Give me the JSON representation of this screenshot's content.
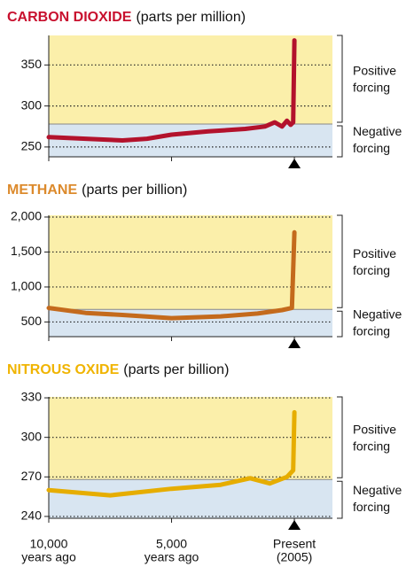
{
  "chart_data": [
    {
      "type": "line",
      "title": "CARBON DIOXIDE",
      "subtitle": "(parts per million)",
      "title_color": "#c8102e",
      "xlim": [
        -10000,
        1550
      ],
      "xticks": [
        -10000,
        -5000,
        0
      ],
      "ylim": [
        238,
        386
      ],
      "yticks": [
        250,
        300,
        350
      ],
      "threshold": 278,
      "annotations": {
        "positive": [
          "Positive",
          "forcing"
        ],
        "negative": [
          "Negative",
          "forcing"
        ]
      },
      "series": [
        {
          "color": "#b3122c",
          "x": [
            -10000,
            -8500,
            -7000,
            -6000,
            -5000,
            -3500,
            -2000,
            -1200,
            -800,
            -500,
            -300,
            -150,
            -50,
            0
          ],
          "values": [
            262,
            260,
            258,
            260,
            265,
            269,
            272,
            275,
            280,
            275,
            282,
            277,
            280,
            380
          ]
        }
      ]
    },
    {
      "type": "line",
      "title": "METHANE",
      "subtitle": "(parts per billion)",
      "title_color": "#dc8a2c",
      "xlim": [
        -10000,
        1550
      ],
      "xticks": [
        -10000,
        -5000,
        0
      ],
      "ylim": [
        290,
        2025
      ],
      "yticks": [
        {
          "value": 2000,
          "label": "2,000"
        },
        {
          "value": 1500,
          "label": "1,500"
        },
        {
          "value": 1000,
          "label": "1,000"
        },
        500
      ],
      "threshold": 680,
      "annotations": {
        "positive": [
          "Positive",
          "forcing"
        ],
        "negative": [
          "Negative",
          "forcing"
        ]
      },
      "series": [
        {
          "color": "#c46a1c",
          "x": [
            -10000,
            -8500,
            -7000,
            -5000,
            -3000,
            -1500,
            -500,
            -100,
            0
          ],
          "values": [
            700,
            630,
            600,
            555,
            580,
            620,
            670,
            700,
            1780
          ]
        }
      ]
    },
    {
      "type": "line",
      "title": "NITROUS OXIDE",
      "subtitle": "(parts per billion)",
      "title_color": "#f0b400",
      "xlim": [
        -10000,
        1550
      ],
      "xticks": [
        {
          "value": -10000,
          "label": [
            "10,000",
            "years ago"
          ]
        },
        {
          "value": -5000,
          "label": [
            "5,000",
            "years ago"
          ]
        },
        {
          "value": 0,
          "label": [
            "Present",
            "(2005)"
          ]
        }
      ],
      "ylim": [
        238.6,
        330.7
      ],
      "yticks": [
        330,
        300,
        270,
        240
      ],
      "threshold": 268,
      "annotations": {
        "positive": [
          "Positive",
          "forcing"
        ],
        "negative": [
          "Negative",
          "forcing"
        ]
      },
      "series": [
        {
          "color": "#e6ad00",
          "x": [
            -10000,
            -7500,
            -5000,
            -3000,
            -1800,
            -1000,
            -300,
            -50,
            0
          ],
          "values": [
            260,
            256,
            261,
            264,
            269,
            265,
            270,
            275,
            319
          ]
        }
      ]
    }
  ]
}
